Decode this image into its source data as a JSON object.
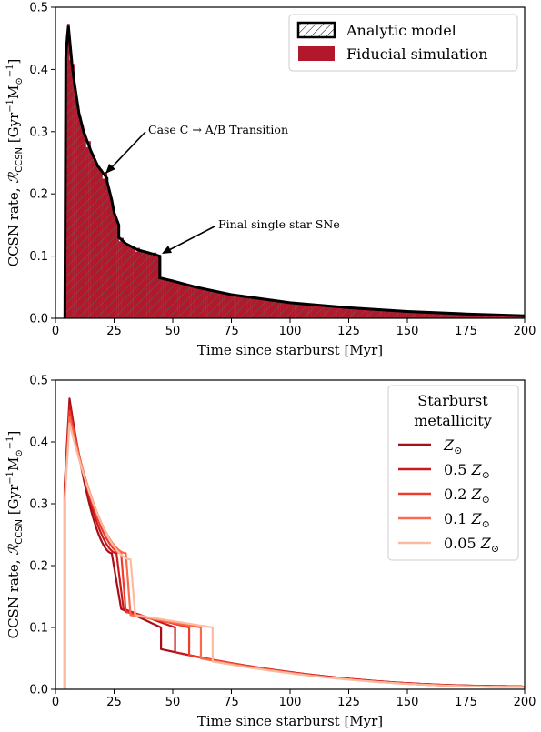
{
  "chart_data": [
    {
      "type": "bar",
      "ylabel": "CCSN rate, ℛ_CCSN [Gyr⁻¹ M⊙⁻¹]",
      "ylabel_parts": {
        "main": "CCSN rate, ",
        "script": "ℛ",
        "sub": "CCSN",
        "unit": " [Gyr",
        "exp1": "−1",
        "m": "M",
        "odot": "⊙",
        "exp2": "−1",
        "close": "]"
      },
      "xlabel": "Time since starburst [Myr]",
      "xlim": [
        0,
        200
      ],
      "ylim": [
        0,
        0.5
      ],
      "xticks": [
        0,
        25,
        50,
        75,
        100,
        125,
        150,
        175,
        200
      ],
      "yticks": [
        0.0,
        0.1,
        0.2,
        0.3,
        0.4,
        0.5
      ],
      "legend_position": "top-right",
      "legend": [
        "Analytic model",
        "Fiducial simulation"
      ],
      "colors": {
        "simulation": "#b2182b",
        "model": "#000000",
        "hatch": "#4a4a4a"
      },
      "annotations": [
        {
          "label": "Case C → A/B Transition",
          "x": 22,
          "y": 0.23
        },
        {
          "label": "Final single star SNe",
          "x": 45,
          "y": 0.1
        }
      ],
      "series": [
        {
          "name": "Analytic model",
          "x": [
            4.0,
            4.4,
            5.0,
            5.5,
            6.0,
            7.0,
            8.0,
            10.0,
            12.0,
            15.0,
            18.0,
            20.0,
            22.0,
            22.0,
            24.0,
            25.0,
            27.0,
            27.0,
            30.0,
            35.0,
            40.0,
            44.5,
            44.5,
            50.0,
            60.0,
            75.0,
            100.0,
            125.0,
            150.0,
            175.0,
            200.0
          ],
          "y": [
            0.0,
            0.42,
            0.45,
            0.47,
            0.45,
            0.41,
            0.38,
            0.33,
            0.3,
            0.27,
            0.245,
            0.235,
            0.225,
            0.22,
            0.19,
            0.17,
            0.15,
            0.13,
            0.12,
            0.11,
            0.105,
            0.1,
            0.065,
            0.06,
            0.05,
            0.038,
            0.025,
            0.017,
            0.011,
            0.007,
            0.004
          ]
        }
      ]
    },
    {
      "type": "line",
      "ylabel": "CCSN rate, ℛ_CCSN [Gyr⁻¹ M⊙⁻¹]",
      "ylabel_parts": {
        "main": "CCSN rate, ",
        "script": "ℛ",
        "sub": "CCSN",
        "unit": " [Gyr",
        "exp1": "−1",
        "m": "M",
        "odot": "⊙",
        "exp2": "−1",
        "close": "]"
      },
      "xlabel": "Time since starburst [Myr]",
      "xlim": [
        0,
        200
      ],
      "ylim": [
        0,
        0.5
      ],
      "xticks": [
        0,
        25,
        50,
        75,
        100,
        125,
        150,
        175,
        200
      ],
      "yticks": [
        0.0,
        0.1,
        0.2,
        0.3,
        0.4,
        0.5
      ],
      "legend_position": "right",
      "legend_title": [
        "Starburst",
        "metallicity"
      ],
      "series": [
        {
          "name": "Z⊙",
          "coef": "",
          "color": "#a50f15",
          "peak": 0.47,
          "t_min": 3.9,
          "t_peak": 6.0,
          "t_ab": 24.0,
          "y_ab": 0.22,
          "t_ab_end": 28.0,
          "y_ab_end": 0.13,
          "t_final": 45.0,
          "y_final_top": 0.1,
          "y_final_bottom": 0.065,
          "y_end": 0.005
        },
        {
          "name": "0.5 Z⊙",
          "coef": "0.5",
          "color": "#cb181d",
          "peak": 0.46,
          "t_min": 3.9,
          "t_peak": 6.0,
          "t_ab": 26.0,
          "y_ab": 0.22,
          "t_ab_end": 29.0,
          "y_ab_end": 0.13,
          "t_final": 51.0,
          "y_final_top": 0.1,
          "y_final_bottom": 0.06,
          "y_end": 0.005
        },
        {
          "name": "0.2 Z⊙",
          "coef": "0.2",
          "color": "#ef3b2c",
          "peak": 0.45,
          "t_min": 3.9,
          "t_peak": 6.0,
          "t_ab": 28.0,
          "y_ab": 0.22,
          "t_ab_end": 30.0,
          "y_ab_end": 0.125,
          "t_final": 57.0,
          "y_final_top": 0.1,
          "y_final_bottom": 0.055,
          "y_end": 0.004
        },
        {
          "name": "0.1 Z⊙",
          "coef": "0.1",
          "color": "#fb6a4a",
          "peak": 0.44,
          "t_min": 3.9,
          "t_peak": 6.0,
          "t_ab": 30.0,
          "y_ab": 0.22,
          "t_ab_end": 32.0,
          "y_ab_end": 0.12,
          "t_final": 62.0,
          "y_final_top": 0.1,
          "y_final_bottom": 0.05,
          "y_end": 0.004
        },
        {
          "name": "0.05 Z⊙",
          "coef": "0.05",
          "color": "#fcbba1",
          "peak": 0.43,
          "t_min": 3.9,
          "t_peak": 6.0,
          "t_ab": 32.0,
          "y_ab": 0.21,
          "t_ab_end": 34.0,
          "y_ab_end": 0.12,
          "t_final": 67.0,
          "y_final_top": 0.1,
          "y_final_bottom": 0.045,
          "y_end": 0.004
        }
      ]
    }
  ]
}
